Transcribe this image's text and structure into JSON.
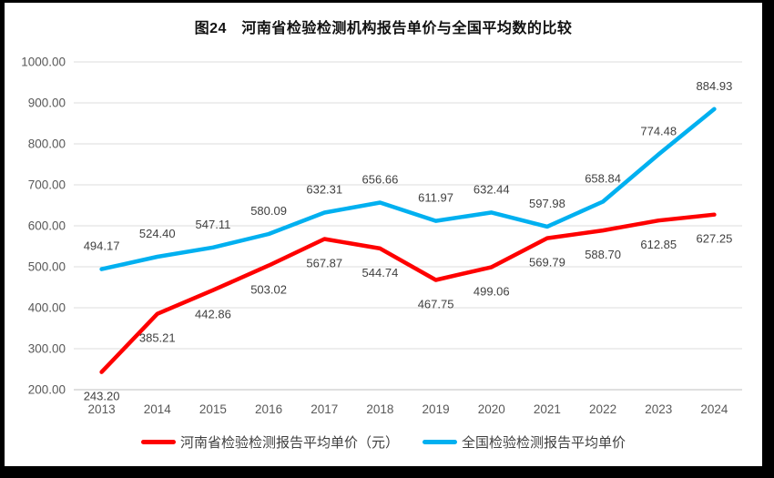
{
  "title": "图24　河南省检验检测机构报告单价与全国平均数的比较",
  "colors": {
    "henan_line": "#FE0000",
    "national_line": "#00B0F0",
    "gridline": "#DCDCDC",
    "axis_line": "#BFBFBF",
    "tick_label": "#595959",
    "data_label": "#404040",
    "frame": "#000000",
    "background": "#FFFFFF"
  },
  "chart_data": {
    "type": "line",
    "title": "图24　河南省检验检测机构报告单价与全国平均数的比较",
    "categories": [
      "2013",
      "2014",
      "2015",
      "2016",
      "2017",
      "2018",
      "2019",
      "2020",
      "2021",
      "2022",
      "2023",
      "2024"
    ],
    "series": [
      {
        "name": "河南省检验检测报告平均单价（元）",
        "color": "#FE0000",
        "label_position": "below",
        "values": [
          243.2,
          385.21,
          442.86,
          503.02,
          567.87,
          544.74,
          467.75,
          499.06,
          569.79,
          588.7,
          612.85,
          627.25
        ]
      },
      {
        "name": "全国检验检测报告平均单价",
        "color": "#00B0F0",
        "label_position": "above",
        "values": [
          494.17,
          524.4,
          547.11,
          580.09,
          632.31,
          656.66,
          611.97,
          632.44,
          597.98,
          658.84,
          774.48,
          884.93
        ]
      }
    ],
    "xlabel": "",
    "ylabel": "",
    "ylim": [
      200,
      1000
    ],
    "ytick_step": 100,
    "ytick_labels": [
      "200.00",
      "300.00",
      "400.00",
      "500.00",
      "600.00",
      "700.00",
      "800.00",
      "900.00",
      "1000.00"
    ],
    "grid": true,
    "legend_position": "bottom",
    "data_label_format": "two_decimals"
  }
}
